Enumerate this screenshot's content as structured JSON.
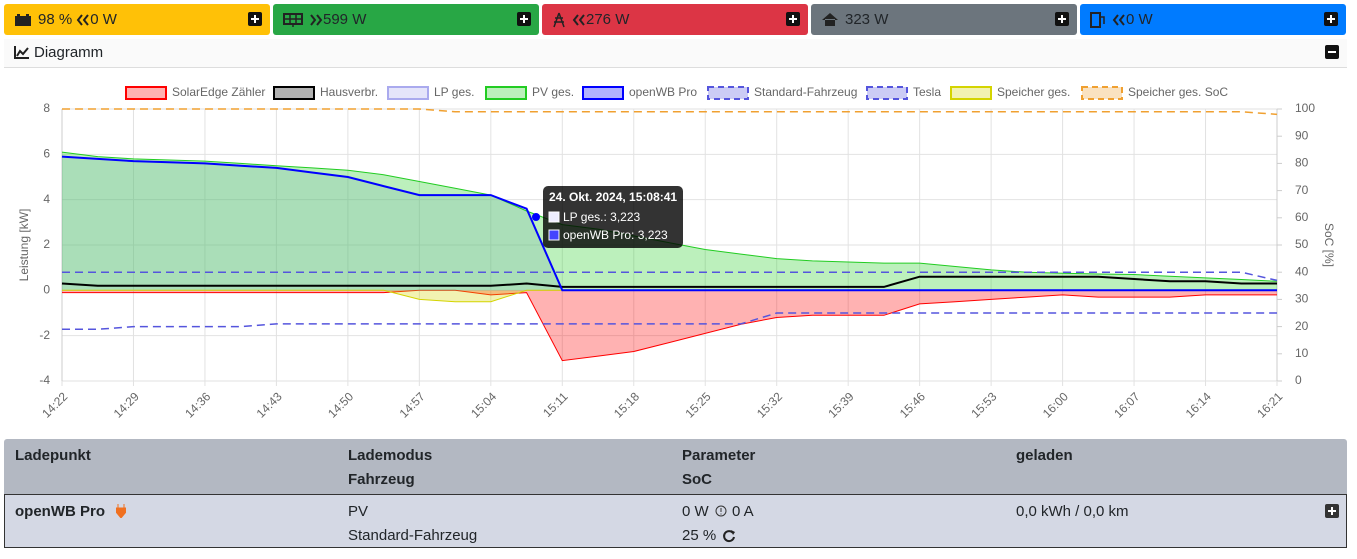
{
  "top_bar": [
    {
      "soc": "98 %",
      "power": "0 W"
    },
    {
      "power": "599 W"
    },
    {
      "power": "276 W"
    },
    {
      "power": "323 W"
    },
    {
      "power": "0 W"
    }
  ],
  "diagram": {
    "title": "Diagramm"
  },
  "chart_data": {
    "type": "line",
    "categories": [
      "14:22",
      null,
      "14:29",
      null,
      "14:36",
      null,
      "14:43",
      null,
      "14:50",
      null,
      "14:57",
      null,
      "15:04",
      null,
      "15:11",
      null,
      "15:18",
      null,
      "15:25",
      null,
      "15:32",
      null,
      "15:39",
      null,
      "15:46",
      null,
      "15:53",
      null,
      "16:00",
      null,
      "16:07",
      null,
      "16:14",
      null,
      "16:21"
    ],
    "ylabel": "Leistung [kW]",
    "y2label": "SoC [%]",
    "ylim": [
      -4,
      8
    ],
    "yticks": [
      -4,
      -2,
      0,
      2,
      4,
      6,
      8
    ],
    "y2lim": [
      0,
      100
    ],
    "y2ticks": [
      0,
      10,
      20,
      30,
      40,
      50,
      60,
      70,
      80,
      90,
      100
    ],
    "grid": true,
    "legend": "top",
    "series": [
      {
        "name": "SolarEdge Zähler",
        "color": "#ff0000",
        "fill": true,
        "values": [
          -0.1,
          -0.1,
          -0.1,
          -0.1,
          -0.1,
          -0.1,
          -0.1,
          -0.1,
          -0.1,
          -0.1,
          0,
          0,
          -0.2,
          -0.1,
          -3.1,
          -2.9,
          -2.7,
          -2.3,
          -1.9,
          -1.5,
          -1.2,
          -1.1,
          -1.1,
          -1.1,
          -0.6,
          -0.5,
          -0.4,
          -0.3,
          -0.2,
          -0.3,
          -0.3,
          -0.3,
          -0.2,
          -0.2,
          -0.2
        ]
      },
      {
        "name": "Hausverbr.",
        "color": "#000000",
        "values": [
          0.3,
          0.2,
          0.2,
          0.2,
          0.2,
          0.2,
          0.2,
          0.2,
          0.2,
          0.2,
          0.2,
          0.2,
          0.2,
          0.3,
          0.15,
          0.15,
          0.15,
          0.15,
          0.15,
          0.15,
          0.15,
          0.15,
          0.15,
          0.15,
          0.6,
          0.6,
          0.6,
          0.6,
          0.6,
          0.6,
          0.5,
          0.4,
          0.4,
          0.3,
          0.3
        ]
      },
      {
        "name": "LP ges.",
        "color": "#aaaaee",
        "fill": true,
        "values": [
          5.9,
          5.8,
          5.7,
          5.65,
          5.6,
          5.5,
          5.4,
          5.2,
          5.0,
          4.6,
          4.2,
          4.2,
          4.2,
          3.6,
          0,
          0,
          0,
          0,
          0,
          0,
          0,
          0,
          0,
          0,
          0,
          0,
          0,
          0,
          0,
          0,
          0,
          0,
          0,
          0,
          0
        ]
      },
      {
        "name": "PV ges.",
        "color": "#22cc22",
        "fill": true,
        "values": [
          6.1,
          5.9,
          5.8,
          5.75,
          5.7,
          5.6,
          5.5,
          5.4,
          5.3,
          5.1,
          4.8,
          4.5,
          4.2,
          3.5,
          2.9,
          2.7,
          2.4,
          2.1,
          1.8,
          1.6,
          1.4,
          1.3,
          1.25,
          1.2,
          1.2,
          1.05,
          0.9,
          0.8,
          0.75,
          0.72,
          0.7,
          0.62,
          0.55,
          0.48,
          0.4
        ]
      },
      {
        "name": "openWB Pro",
        "color": "#0000ff",
        "values": [
          5.9,
          5.8,
          5.7,
          5.65,
          5.6,
          5.5,
          5.4,
          5.2,
          5.0,
          4.6,
          4.2,
          4.2,
          4.2,
          3.6,
          0,
          0,
          0,
          0,
          0,
          0,
          0,
          0,
          0,
          0,
          0,
          0,
          0,
          0,
          0,
          0,
          0,
          0,
          0,
          0,
          0
        ]
      },
      {
        "name": "Standard-Fahrzeug",
        "color": "#5555dd",
        "dashed": true,
        "axis": "y2",
        "values": [
          19,
          19,
          20,
          20,
          20,
          20,
          21,
          21,
          21,
          21,
          21,
          21,
          21,
          21,
          21,
          21,
          21,
          21,
          21,
          21,
          25,
          25,
          25,
          25,
          25,
          25,
          25,
          25,
          25,
          25,
          25,
          25,
          25,
          25,
          25
        ]
      },
      {
        "name": "Tesla",
        "color": "#5555dd",
        "dashed": true,
        "axis": "y2",
        "values": [
          40,
          40,
          40,
          40,
          40,
          40,
          40,
          40,
          40,
          40,
          40,
          40,
          40,
          40,
          40,
          40,
          40,
          40,
          40,
          40,
          40,
          40,
          40,
          40,
          40,
          40,
          40,
          40,
          40,
          40,
          40,
          40,
          40,
          40,
          37
        ]
      },
      {
        "name": "Speicher ges.",
        "color": "#d4d400",
        "fill": true,
        "values": [
          0,
          0,
          0,
          0,
          0,
          0,
          0,
          0,
          0,
          0,
          -0.4,
          -0.5,
          -0.5,
          0,
          0,
          0,
          0,
          0,
          0,
          0,
          0,
          0,
          0,
          0,
          0,
          0,
          0,
          0,
          0,
          0,
          0,
          0,
          0,
          0,
          0
        ]
      },
      {
        "name": "Speicher ges. SoC",
        "color": "#f0a030",
        "dashed": true,
        "axis": "y2",
        "values": [
          100,
          100,
          100,
          100,
          100,
          100,
          100,
          100,
          100,
          100,
          100,
          99,
          99,
          99,
          99,
          99,
          99,
          99,
          99,
          99,
          99,
          99,
          99,
          99,
          99,
          99,
          99,
          99,
          99,
          99,
          99,
          99,
          99,
          99,
          98
        ]
      }
    ],
    "tooltip": {
      "title": "24. Okt. 2024, 15:08:41",
      "lines": [
        "LP ges.: 3,223",
        "openWB Pro: 3,223"
      ]
    }
  },
  "table": {
    "headers": [
      [
        "Ladepunkt"
      ],
      [
        "Lademodus",
        "Fahrzeug"
      ],
      [
        "Parameter",
        "SoC"
      ],
      [
        "geladen"
      ]
    ],
    "rows": [
      {
        "name": "openWB Pro",
        "mode": "PV",
        "vehicle": "Standard-Fahrzeug",
        "power": "0 W",
        "current": "0 A",
        "soc": "25 %",
        "charged": "0,0 kWh / 0,0 km"
      }
    ]
  }
}
